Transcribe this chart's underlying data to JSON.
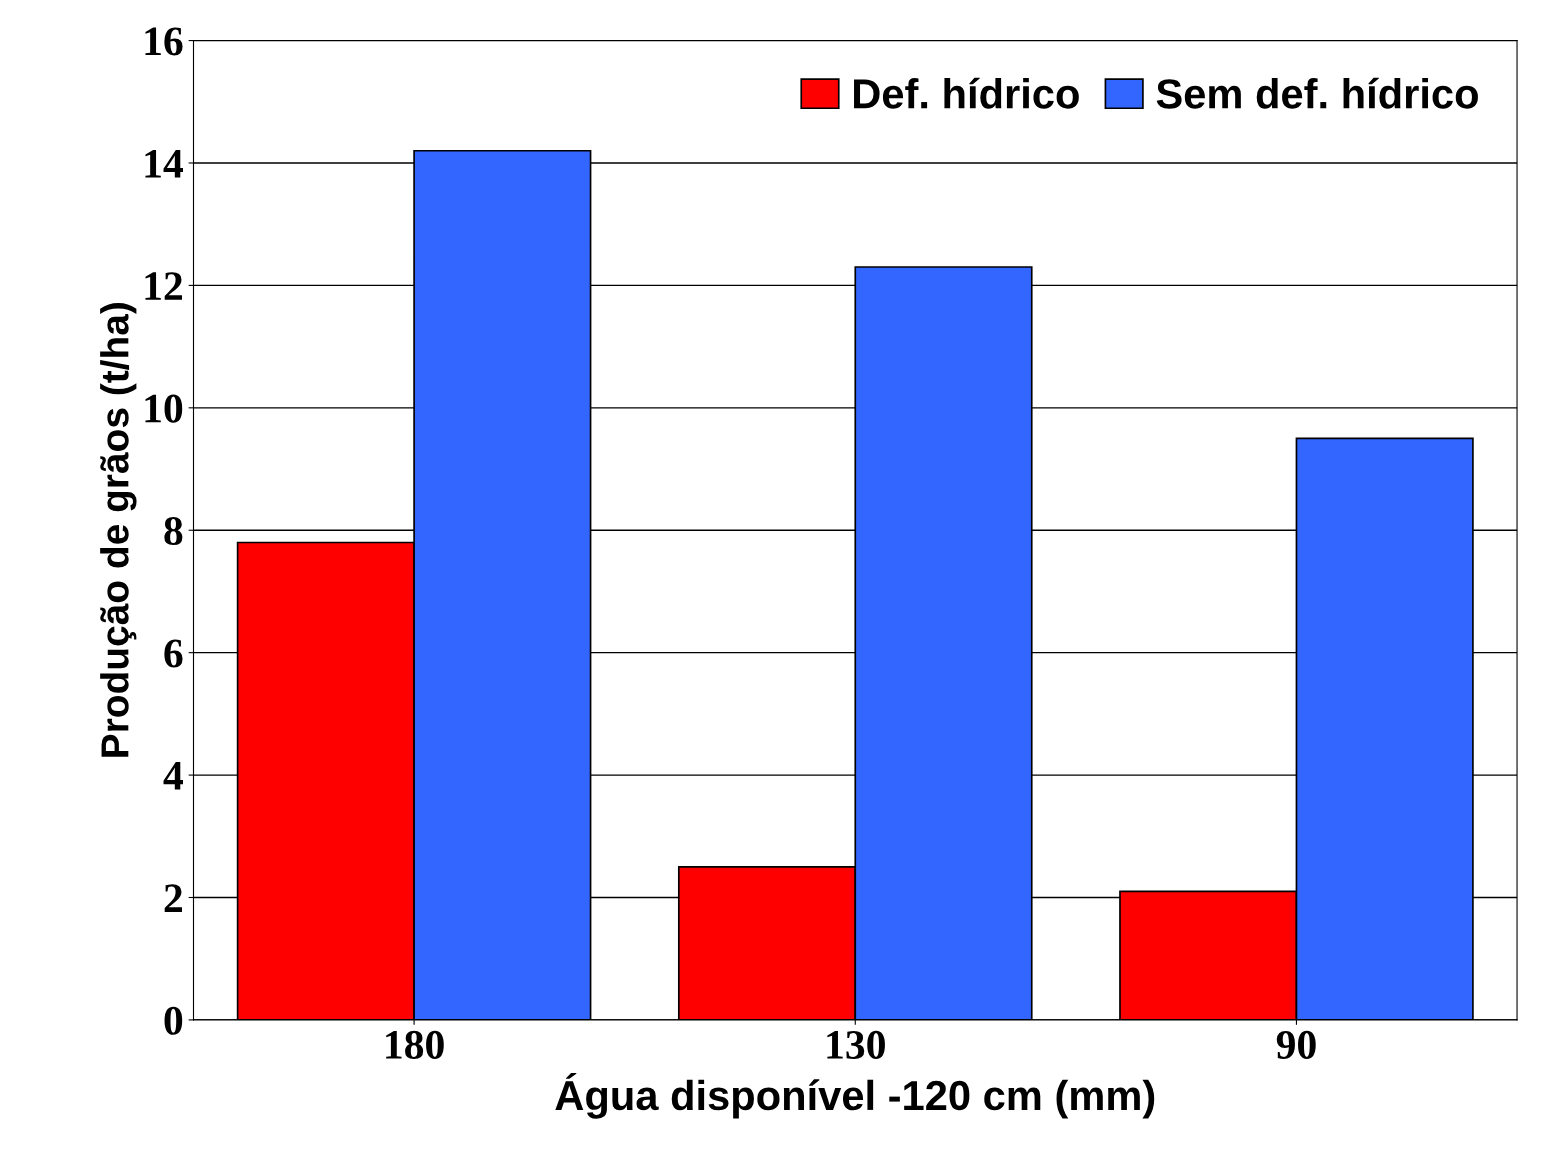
{
  "chart_data": {
    "type": "bar",
    "xlabel": "Água disponível -120 cm (mm)",
    "ylabel": "Produção de grãos (t/ha)",
    "categories": [
      "180",
      "130",
      "90"
    ],
    "series": [
      {
        "name": "Def. hídrico",
        "color": "#ff0000",
        "values": [
          7.8,
          2.5,
          2.1
        ]
      },
      {
        "name": "Sem def. hídrico",
        "color": "#3366ff",
        "values": [
          14.2,
          12.3,
          9.5
        ]
      }
    ],
    "ylim": [
      0,
      16
    ],
    "yticks": [
      0,
      2,
      4,
      6,
      8,
      10,
      12,
      14,
      16
    ],
    "grid": "y",
    "legend": "top right"
  }
}
